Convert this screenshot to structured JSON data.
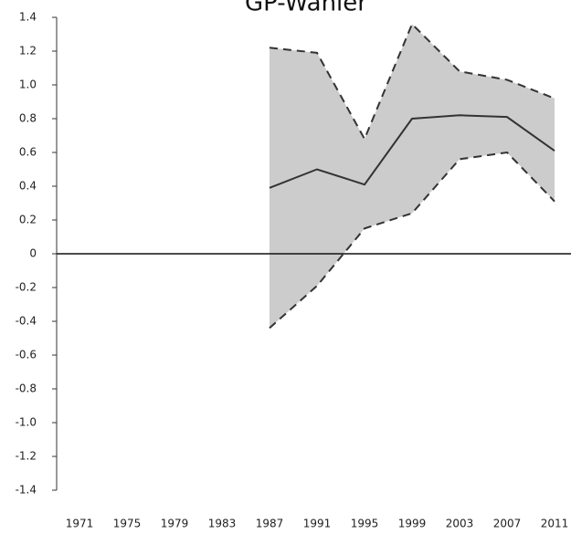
{
  "chart_data": {
    "type": "line",
    "title": "GP-Wähler",
    "categories": [
      "1971",
      "1975",
      "1979",
      "1983",
      "1987",
      "1991",
      "1995",
      "1999",
      "2003",
      "2007",
      "2011"
    ],
    "values": [
      null,
      null,
      null,
      null,
      0.39,
      0.5,
      0.41,
      0.8,
      0.82,
      0.81,
      0.61
    ],
    "upper": [
      null,
      null,
      null,
      null,
      1.22,
      1.19,
      0.68,
      1.36,
      1.08,
      1.03,
      0.92
    ],
    "lower": [
      null,
      null,
      null,
      null,
      -0.44,
      -0.19,
      0.15,
      0.24,
      0.56,
      0.6,
      0.31
    ],
    "color": "#333333",
    "band_color": "#cccccc",
    "ylim": [
      -1.4,
      1.4
    ],
    "yticks": [
      {
        "value": 1.4,
        "label": "1.4"
      },
      {
        "value": 1.2,
        "label": "1.2"
      },
      {
        "value": 1,
        "label": "1.0"
      },
      0.8,
      0.6,
      0.4,
      0.2,
      0,
      -0.2,
      -0.4,
      -0.6,
      -0.8,
      {
        "value": -1,
        "label": "-1.0"
      },
      -1.2,
      -1.4
    ]
  }
}
